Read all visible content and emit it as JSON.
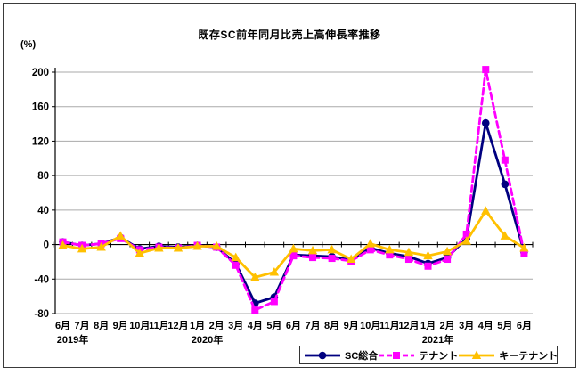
{
  "chart_data": {
    "type": "line",
    "title": "既存SC前年同月比売上高伸長率推移",
    "y_unit_label": "(%)",
    "ylim": [
      -80,
      200
    ],
    "ytick_step": 40,
    "y_tick_labels": [
      "200",
      "160",
      "120",
      "80",
      "40",
      "0",
      "-40",
      "-80"
    ],
    "grid": "horizontal",
    "legend_position": "bottom-right",
    "x_labels": [
      "6月",
      "7月",
      "8月",
      "9月",
      "10月",
      "11月",
      "12月",
      "1月",
      "2月",
      "3月",
      "4月",
      "5月",
      "6月",
      "7月",
      "8月",
      "9月",
      "10月",
      "11月",
      "12月",
      "1月",
      "2月",
      "3月",
      "4月",
      "5月",
      "6月"
    ],
    "year_labels": [
      {
        "label": "2019年",
        "month_index": 0
      },
      {
        "label": "2020年",
        "month_index": 7
      },
      {
        "label": "2021年",
        "month_index": 19
      }
    ],
    "series": [
      {
        "name": "SC総合",
        "color": "#000080",
        "marker": "circle",
        "line_style": "solid",
        "values": [
          3,
          -1,
          1,
          8,
          -5,
          -2,
          -3,
          -1,
          -3,
          -22,
          -68,
          -61,
          -12,
          -13,
          -14,
          -18,
          -4,
          -10,
          -14,
          -22,
          -15,
          7,
          141,
          70,
          -9
        ]
      },
      {
        "name": "テナント",
        "color": "#FF00FF",
        "marker": "square",
        "line_style": "dashed",
        "values": [
          3,
          -1,
          1,
          7,
          -6,
          -3,
          -4,
          -1,
          -3,
          -24,
          -76,
          -66,
          -13,
          -15,
          -16,
          -19,
          -6,
          -12,
          -17,
          -25,
          -17,
          12,
          203,
          98,
          -10
        ]
      },
      {
        "name": "キーテナント",
        "color": "#FFC000",
        "marker": "triangle",
        "line_style": "solid",
        "values": [
          -1,
          -5,
          -3,
          10,
          -10,
          -4,
          -4,
          -2,
          -2,
          -15,
          -38,
          -32,
          -5,
          -7,
          -6,
          -17,
          1,
          -6,
          -9,
          -13,
          -8,
          4,
          39,
          10,
          -4
        ]
      }
    ],
    "colors": {
      "axis": "#000000",
      "gridline": "#aaaaaa",
      "background": "#ffffff"
    }
  }
}
